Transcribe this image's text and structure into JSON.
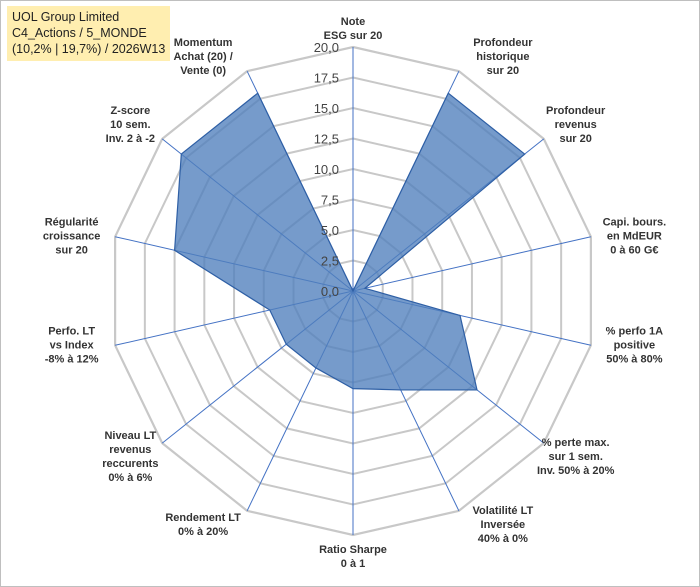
{
  "header": {
    "lines": [
      "UOL Group Limited",
      "C4_Actions / 5_MONDE",
      "(10,2% | 19,7%) / 2026W13"
    ]
  },
  "chart_data": {
    "type": "radar",
    "title": "UOL Group Limited",
    "rlim": [
      0,
      20
    ],
    "ticks": [
      "0,0",
      "2,5",
      "5,0",
      "7,5",
      "10,0",
      "12,5",
      "15,0",
      "17,5",
      "20,0"
    ],
    "grid": true,
    "axes": [
      {
        "label": [
          "Note",
          "ESG sur 20"
        ],
        "value": 0
      },
      {
        "label": [
          "Profondeur",
          "historique",
          "sur 20"
        ],
        "value": 18
      },
      {
        "label": [
          "Profondeur",
          "revenus",
          "sur 20"
        ],
        "value": 18
      },
      {
        "label": [
          "Capi. bours.",
          "en MdEUR",
          "0 à 60 G€"
        ],
        "value": 1
      },
      {
        "label": [
          "% perfo 1A",
          "positive",
          "50% à 80%"
        ],
        "value": 9
      },
      {
        "label": [
          "% perte max.",
          "sur 1 sem.",
          "Inv. 50% à 20%"
        ],
        "value": 13
      },
      {
        "label": [
          "Volatilité LT",
          "Inversée",
          "40% à 0%"
        ],
        "value": 9
      },
      {
        "label": [
          "Ratio Sharpe",
          "0 à 1"
        ],
        "value": 8
      },
      {
        "label": [
          "Rendement LT",
          "0% à 20%"
        ],
        "value": 7
      },
      {
        "label": [
          "Niveau LT",
          "revenus",
          "reccurents",
          "0% à 6%"
        ],
        "value": 7
      },
      {
        "label": [
          "Perfo. LT",
          "vs Index",
          "-8% à 12%"
        ],
        "value": 7
      },
      {
        "label": [
          "Régularité",
          "croissance",
          "sur 20"
        ],
        "value": 15
      },
      {
        "label": [
          "Z-score",
          "10 sem.",
          "Inv. 2 à -2"
        ],
        "value": 18
      },
      {
        "label": [
          "Momentum",
          "Achat (20) /",
          "Vente (0)"
        ],
        "value": 18
      }
    ],
    "colors": {
      "fill": "#4f7fbd",
      "stroke": "#2e5fa5",
      "grid": "#c8c8c8",
      "axis": "#4472c4"
    }
  }
}
